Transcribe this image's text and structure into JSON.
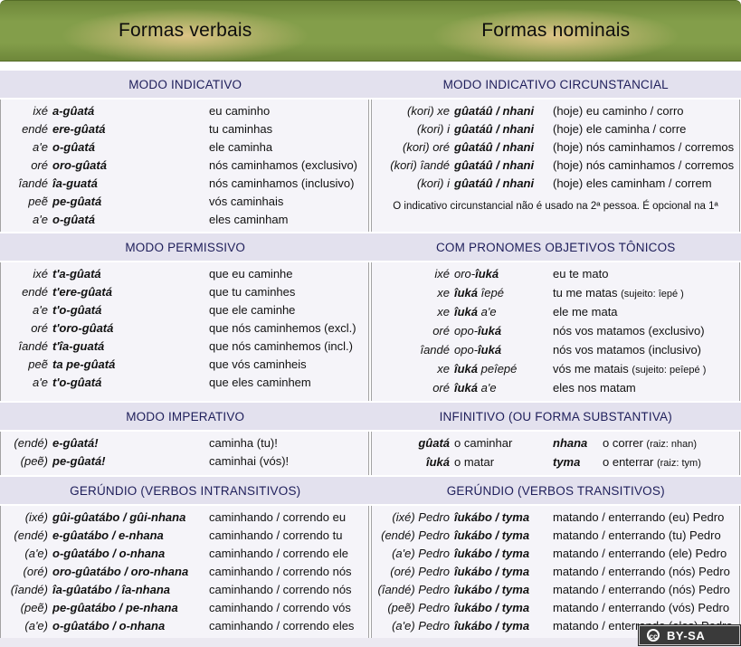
{
  "header": {
    "left_title": "Formas verbais",
    "right_title": "Formas nominais"
  },
  "colors": {
    "header_green": "#839e4a",
    "header_glow": "#e2c68a",
    "band_background": "#e3e1ee",
    "content_background": "#f5f4f9",
    "section_title_color": "#1e1e5a",
    "bottom_strip": "#ebe9f1"
  },
  "sections": [
    {
      "left": {
        "title": "MODO INDICATIVO",
        "rows": [
          {
            "p": "ixé",
            "v": "a-gûatá",
            "t": "eu caminho"
          },
          {
            "p": "endé",
            "v": "ere-gûatá",
            "t": "tu caminhas"
          },
          {
            "p": "a'e",
            "v": "o-gûatá",
            "t": "ele caminha"
          },
          {
            "p": "oré",
            "v": "oro-gûatá",
            "t": "nós caminhamos (exclusivo)"
          },
          {
            "p": "îandé",
            "v": "îa-guatá",
            "t": "nós caminhamos (inclusivo)"
          },
          {
            "p": "peẽ",
            "v": "pe-gûatá",
            "t": "vós caminhais"
          },
          {
            "p": "a'e",
            "v": "o-gûatá",
            "t": "eles caminham"
          }
        ]
      },
      "right": {
        "title": "MODO INDICATIVO CIRCUNSTANCIAL",
        "rows": [
          {
            "p": "(kori) xe",
            "v": "gûatáû / nhani",
            "t": "(hoje) eu caminho / corro"
          },
          {
            "p": "(kori) i",
            "v": "gûatáû / nhani",
            "t": "(hoje) ele caminha / corre"
          },
          {
            "p": "(kori) oré",
            "v": "gûatáû / nhani",
            "t": "(hoje) nós caminhamos / corremos"
          },
          {
            "p": "(kori) îandé",
            "v": "gûatáû / nhani",
            "t": "(hoje) nós caminhamos / corremos"
          },
          {
            "p": "(kori) i",
            "v": "gûatáû / nhani",
            "t": "(hoje) eles caminham / correm"
          }
        ],
        "note": "O indicativo circunstancial não é usado na 2ª pessoa. É opcional na 1ª"
      }
    },
    {
      "left": {
        "title": "MODO PERMISSIVO",
        "rows": [
          {
            "p": "ixé",
            "v": "t'a-gûatá",
            "t": "que eu caminhe"
          },
          {
            "p": "endé",
            "v": "t'ere-gûatá",
            "t": "que tu caminhes"
          },
          {
            "p": "a'e",
            "v": "t'o-gûatá",
            "t": "que ele caminhe"
          },
          {
            "p": "oré",
            "v": "t'oro-gûatá",
            "t": "que nós caminhemos (excl.)"
          },
          {
            "p": "îandé",
            "v": "t'îa-guatá",
            "t": "que nós caminhemos (incl.)"
          },
          {
            "p": "peẽ",
            "v": "ta pe-gûatá",
            "t": "que vós caminheis"
          },
          {
            "p": "a'e",
            "v": "t'o-gûatá",
            "t": "que eles caminhem"
          }
        ]
      },
      "right": {
        "title": "COM PRONOMES OBJETIVOS TÔNICOS",
        "rows": [
          {
            "p": "ixé",
            "vpre": "oro-",
            "v": "îuká",
            "vpost": "",
            "t": "eu te mato"
          },
          {
            "p": "xe",
            "vpre": "",
            "v": "îuká",
            "vpost": " îepé",
            "t": "tu me matas ",
            "small": "(sujeito: îepé )"
          },
          {
            "p": "xe",
            "vpre": "",
            "v": "îuká",
            "vpost": " a'e",
            "t": "ele me mata"
          },
          {
            "p": "oré",
            "vpre": "opo-",
            "v": "îuká",
            "vpost": "",
            "t": "nós vos matamos (exclusivo)"
          },
          {
            "p": "îandé",
            "vpre": "opo-",
            "v": "îuká",
            "vpost": "",
            "t": "nós vos matamos (inclusivo)"
          },
          {
            "p": "xe",
            "vpre": "",
            "v": "îuká",
            "vpost": " peîepé",
            "t": "vós me matais ",
            "small": "(sujeito: peîepé )"
          },
          {
            "p": "oré",
            "vpre": "",
            "v": "îuká",
            "vpost": " a'e",
            "t": "eles nos matam"
          }
        ]
      }
    },
    {
      "left": {
        "title": "MODO IMPERATIVO",
        "rows": [
          {
            "p": "(endé)",
            "v": "e-gûatá!",
            "t": "caminha (tu)!"
          },
          {
            "p": "(peẽ)",
            "v": "pe-gûatá!",
            "t": "caminhai (vós)!"
          }
        ]
      },
      "right": {
        "title": "INFINITIVO (OU FORMA SUBSTANTIVA)",
        "inf_rows": [
          {
            "va": "gûatá",
            "ta": "o caminhar",
            "vb": "nhana",
            "tb": "o correr ",
            "tbsmall": "(raiz: nhan)"
          },
          {
            "va": "îuká",
            "ta": "o matar",
            "vb": "tyma",
            "tb": "o enterrar ",
            "tbsmall": "(raiz: tym)"
          }
        ]
      }
    },
    {
      "left": {
        "title": "GERÚNDIO (VERBOS INTRANSITIVOS)",
        "rows": [
          {
            "p": "(ixé)",
            "v": "gûi-gûatábo / gûi-nhana",
            "t": "caminhando / correndo eu"
          },
          {
            "p": "(endé)",
            "v": "e-gûatábo / e-nhana",
            "t": "caminhando / correndo tu"
          },
          {
            "p": "(a'e)",
            "v": "o-gûatábo / o-nhana",
            "t": "caminhando / correndo ele"
          },
          {
            "p": "(oré)",
            "v": "oro-gûatábo / oro-nhana",
            "t": "caminhando / correndo nós"
          },
          {
            "p": "(îandé)",
            "v": "îa-gûatábo / îa-nhana",
            "t": "caminhando / correndo nós"
          },
          {
            "p": "(peẽ)",
            "v": "pe-gûatábo / pe-nhana",
            "t": "caminhando / correndo vós"
          },
          {
            "p": "(a'e)",
            "v": "o-gûatábo / o-nhana",
            "t": "caminhando / correndo eles"
          }
        ]
      },
      "right": {
        "title": "GERÚNDIO (VERBOS TRANSITIVOS)",
        "rows": [
          {
            "p": "(ixé) Pedro",
            "v": "îukábo / tyma",
            "t": "matando / enterrando (eu) Pedro"
          },
          {
            "p": "(endé) Pedro",
            "v": "îukábo / tyma",
            "t": "matando / enterrando (tu) Pedro"
          },
          {
            "p": "(a'e) Pedro",
            "v": "îukábo / tyma",
            "t": "matando / enterrando (ele) Pedro"
          },
          {
            "p": "(oré) Pedro",
            "v": "îukábo / tyma",
            "t": "matando / enterrando (nós) Pedro"
          },
          {
            "p": "(îandé) Pedro",
            "v": "îukábo / tyma",
            "t": "matando / enterrando (nós) Pedro"
          },
          {
            "p": "(peẽ) Pedro",
            "v": "îukábo / tyma",
            "t": "matando / enterrando (vós) Pedro"
          },
          {
            "p": "(a'e) Pedro",
            "v": "îukábo / tyma",
            "t": "matando / enterrando (eles) Pedro"
          }
        ]
      }
    }
  ],
  "footer": {
    "cc_symbol": "cc",
    "license_label": "BY-SA"
  }
}
